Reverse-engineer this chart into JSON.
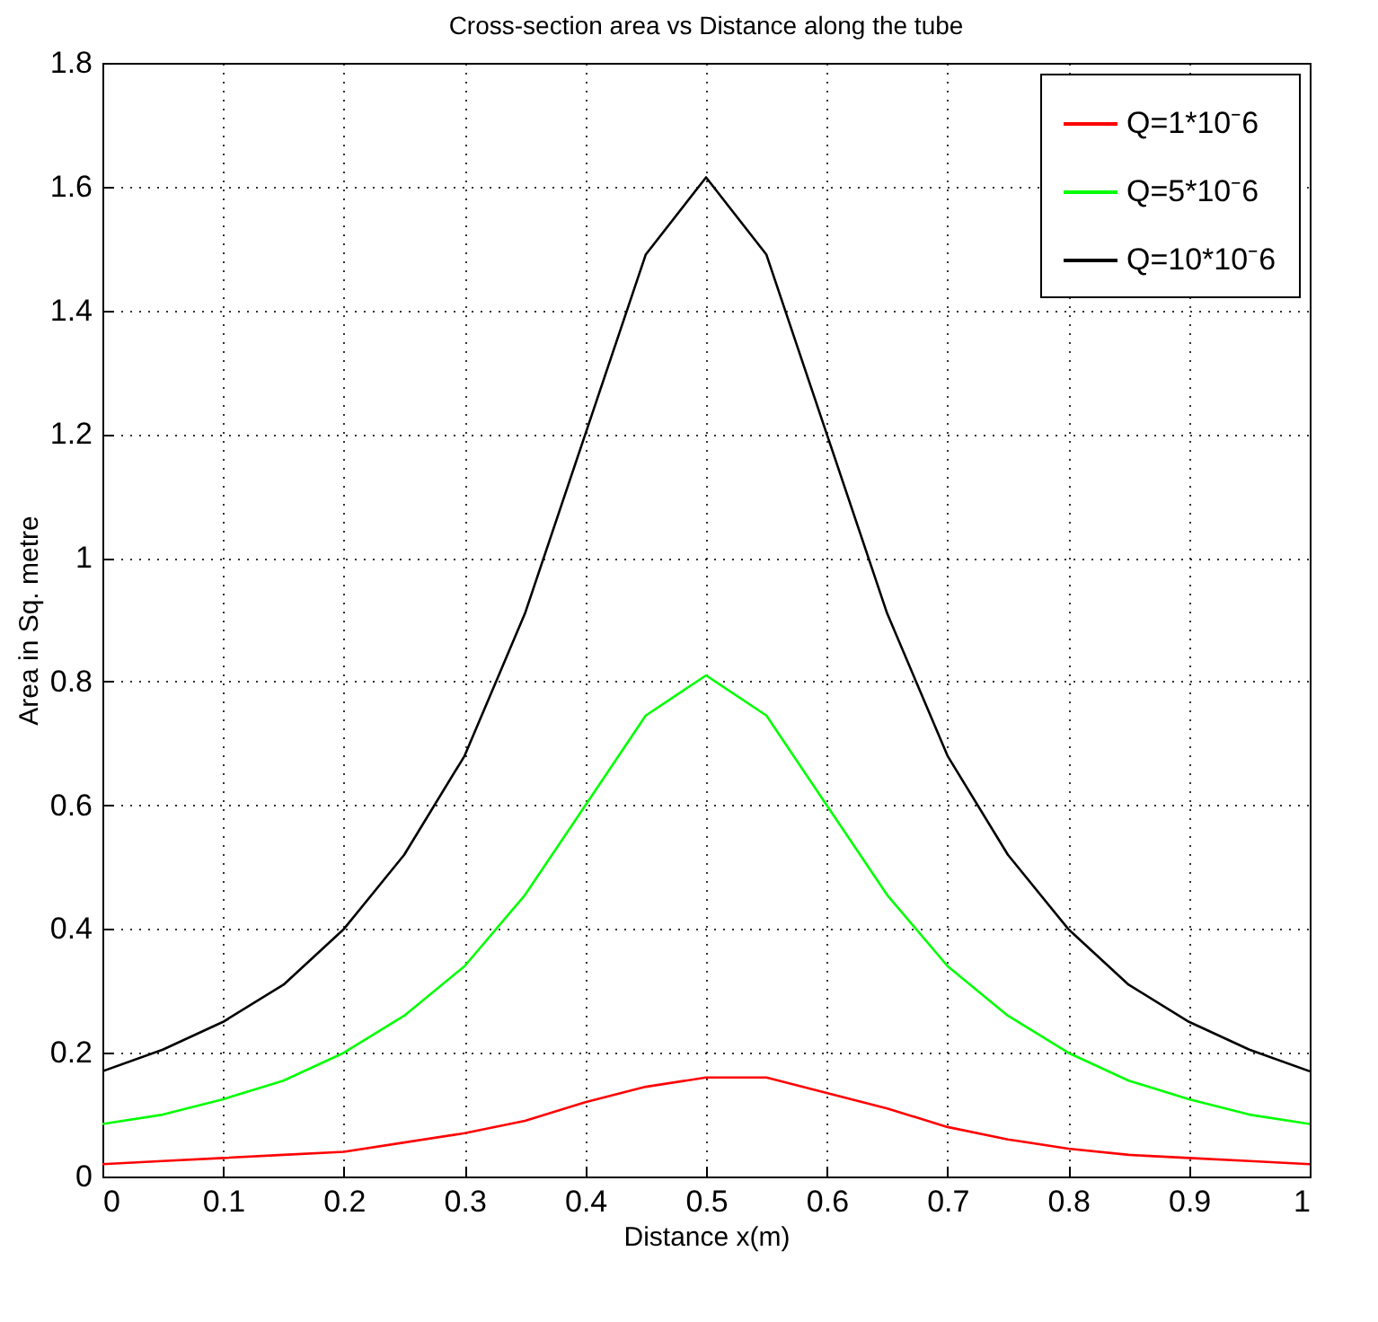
{
  "chart_data": {
    "type": "line",
    "title": "Cross-section area vs Distance along the tube",
    "xlabel": "Distance x(m)",
    "ylabel": "Area in Sq. metre",
    "x": [
      0,
      0.05,
      0.1,
      0.15,
      0.2,
      0.25,
      0.3,
      0.35,
      0.4,
      0.45,
      0.5,
      0.55,
      0.6,
      0.65,
      0.7,
      0.75,
      0.8,
      0.85,
      0.9,
      0.95,
      1
    ],
    "series": [
      {
        "name": "Q=1*10⁻6",
        "color": "#ff0000",
        "values": [
          0.02,
          0.025,
          0.03,
          0.035,
          0.04,
          0.055,
          0.07,
          0.09,
          0.12,
          0.145,
          0.16,
          0.16,
          0.135,
          0.11,
          0.08,
          0.06,
          0.045,
          0.035,
          0.03,
          0.025,
          0.02
        ]
      },
      {
        "name": "Q=5*10⁻6",
        "color": "#00ff00",
        "values": [
          0.085,
          0.1,
          0.125,
          0.155,
          0.2,
          0.26,
          0.34,
          0.455,
          0.6,
          0.745,
          0.81,
          0.745,
          0.6,
          0.455,
          0.34,
          0.26,
          0.2,
          0.155,
          0.125,
          0.1,
          0.085
        ]
      },
      {
        "name": "Q=10*10⁻6",
        "color": "#000000",
        "values": [
          0.17,
          0.205,
          0.25,
          0.31,
          0.4,
          0.52,
          0.68,
          0.91,
          1.2,
          1.49,
          1.615,
          1.49,
          1.2,
          0.91,
          0.68,
          0.52,
          0.4,
          0.31,
          0.25,
          0.205,
          0.17
        ]
      }
    ],
    "xlim": [
      0,
      1
    ],
    "xticks": [
      0,
      0.1,
      0.2,
      0.3,
      0.4,
      0.5,
      0.6,
      0.7,
      0.8,
      0.9,
      1
    ],
    "ylim": [
      0,
      1.8
    ],
    "yticks": [
      0,
      0.2,
      0.4,
      0.6,
      0.8,
      1,
      1.2,
      1.4,
      1.6,
      1.8
    ],
    "grid": true,
    "legend": "top right",
    "marker": "none",
    "line_style": "solid"
  }
}
